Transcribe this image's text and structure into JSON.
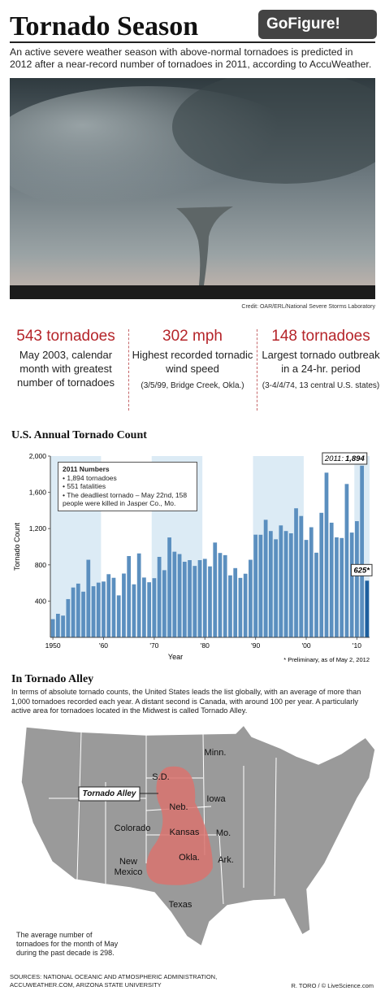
{
  "header": {
    "title": "Tornado Season",
    "badge": "GoFigure!",
    "intro": "An active severe weather season with above-normal tornadoes is predicted in 2012 after a near-record number of tornadoes in 2011, according to AccuWeather.",
    "photo_credit": "Credit: OAR/ERL/National Severe Storms Laboratory"
  },
  "stats": [
    {
      "figure": "543 tornadoes",
      "text": "May 2003, calendar month with greatest number of tornadoes"
    },
    {
      "figure": "302 mph",
      "text": "Highest recorded tornadic wind speed",
      "detail": "(3/5/99, Bridge Creek, Okla.)"
    },
    {
      "figure": "148 tornadoes",
      "text": "Largest tornado outbreak in a 24-hr. period",
      "detail": "(3-4/4/74, 13 central U.S. states)"
    }
  ],
  "chart_data": {
    "type": "bar",
    "title": "U.S. Annual Tornado Count",
    "x_label": "Year",
    "y_label": "Tornado Count",
    "x": [
      1950,
      1951,
      1952,
      1953,
      1954,
      1955,
      1956,
      1957,
      1958,
      1959,
      1960,
      1961,
      1962,
      1963,
      1964,
      1965,
      1966,
      1967,
      1968,
      1969,
      1970,
      1971,
      1972,
      1973,
      1974,
      1975,
      1976,
      1977,
      1978,
      1979,
      1980,
      1981,
      1982,
      1983,
      1984,
      1985,
      1986,
      1987,
      1988,
      1989,
      1990,
      1991,
      1992,
      1993,
      1994,
      1995,
      1996,
      1997,
      1998,
      1999,
      2000,
      2001,
      2002,
      2003,
      2004,
      2005,
      2006,
      2007,
      2008,
      2009,
      2010,
      2011,
      2012
    ],
    "values": [
      201,
      260,
      240,
      422,
      550,
      593,
      504,
      856,
      564,
      604,
      616,
      697,
      657,
      463,
      704,
      897,
      585,
      926,
      660,
      608,
      653,
      888,
      741,
      1102,
      945,
      919,
      834,
      852,
      788,
      852,
      866,
      783,
      1046,
      931,
      907,
      684,
      764,
      656,
      702,
      856,
      1133,
      1132,
      1297,
      1173,
      1082,
      1235,
      1173,
      1148,
      1424,
      1339,
      1075,
      1215,
      934,
      1374,
      1817,
      1265,
      1103,
      1096,
      1692,
      1156,
      1282,
      1894,
      625
    ],
    "value_labels": [
      null,
      null,
      null,
      null,
      null,
      null,
      null,
      null,
      null,
      null,
      null,
      null,
      null,
      null,
      null,
      null,
      null,
      null,
      null,
      null,
      null,
      null,
      null,
      null,
      null,
      null,
      null,
      null,
      null,
      null,
      null,
      null,
      null,
      null,
      null,
      null,
      null,
      null,
      null,
      null,
      null,
      null,
      null,
      null,
      null,
      null,
      null,
      null,
      null,
      null,
      null,
      null,
      null,
      null,
      null,
      null,
      null,
      null,
      null,
      null,
      null,
      "1,894",
      "625*"
    ],
    "callout_label": "2011:",
    "color": "#5b8fbf",
    "highlight_color": "#1d5f9e",
    "band_color": "#dcebf5",
    "xlim": [
      1949.5,
      2012.5
    ],
    "xticks": [
      1950,
      {
        "value": 1960,
        "label": "'60"
      },
      {
        "value": 1970,
        "label": "'70"
      },
      {
        "value": 1980,
        "label": "'80"
      },
      {
        "value": 1990,
        "label": "'90"
      },
      {
        "value": 2000,
        "label": "'00"
      },
      {
        "value": 2010,
        "label": "'10"
      }
    ],
    "ylim": [
      0,
      2000
    ],
    "yticks": [
      400,
      800,
      {
        "value": 1200,
        "label": "1,200"
      },
      {
        "value": 1600,
        "label": "1,600"
      },
      {
        "value": 2000,
        "label": "2,000"
      }
    ],
    "inset": {
      "title": "2011 Numbers",
      "items": [
        "1,894 tornadoes",
        "551 fatalities",
        "The deadliest tornado – May 22nd, 158 people were killed in Jasper Co., Mo."
      ]
    },
    "note": "* Preliminary, as of May 2, 2012"
  },
  "alley": {
    "heading": "In Tornado Alley",
    "text": "In terms of absolute tornado counts, the United States leads the list globally, with an average of more than 1,000 tornadoes recorded each year. A distant second is Canada, with around 100 per year. A particularly active area for tornadoes located in the Midwest is called Tornado Alley.",
    "callout": "Tornado Alley",
    "labels": [
      "Minn.",
      "S.D.",
      "Neb.",
      "Iowa",
      "Colorado",
      "Kansas",
      "Mo.",
      "New Mexico",
      "Okla.",
      "Ark.",
      "Texas"
    ],
    "note": "The average number of tornadoes for the month of May during the past decade is 298."
  },
  "footer": {
    "sources": "SOURCES: NATIONAL OCEANIC AND ATMOSPHERIC ADMINISTRATION, ACCUWEATHER.COM, ARIZONA STATE UNIVERSITY",
    "credit": "R. TORO / © LiveScience.com"
  }
}
